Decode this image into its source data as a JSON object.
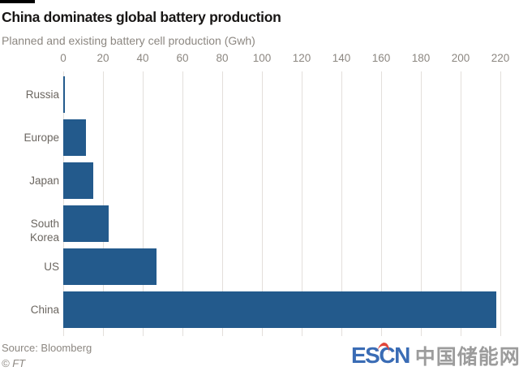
{
  "header": {
    "title": "China dominates global battery production",
    "subtitle": "Planned and existing battery cell production (Gwh)"
  },
  "chart_data": {
    "type": "bar",
    "orientation": "horizontal",
    "title": "China dominates global battery production",
    "subtitle": "Planned and existing battery cell production (Gwh)",
    "unit": "Gwh",
    "categories": [
      "Russia",
      "Europe",
      "Japan",
      "South Korea",
      "US",
      "China"
    ],
    "values": [
      1,
      11.5,
      15,
      23,
      47,
      218
    ],
    "x_ticks": [
      0,
      20,
      40,
      60,
      80,
      100,
      120,
      140,
      160,
      180,
      200,
      220
    ],
    "xlim": [
      0,
      225
    ],
    "grid": true,
    "legend": false,
    "bar_color": "#235a8c",
    "source": "Source: Bloomberg"
  },
  "footer": {
    "source": "Source: Bloomberg",
    "copyright": "© FT",
    "logo": {
      "latin": "ESCN",
      "chinese": "中国储能网"
    }
  },
  "colors": {
    "bar": "#235a8c",
    "gridline": "#e3dfdb",
    "title_text": "#181615",
    "muted_text": "#8c8781",
    "category_text": "#6b6660",
    "logo_blue": "#3a6cb5",
    "logo_gray": "#9c9c9c",
    "logo_accent_red": "#e2463b",
    "background": "#ffffff",
    "top_bar": "#000000"
  }
}
